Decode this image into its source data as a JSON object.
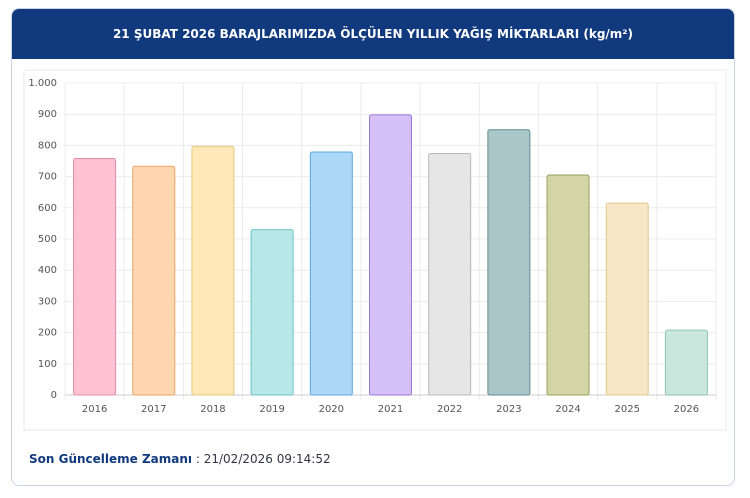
{
  "chart_data": {
    "type": "bar",
    "title": "21 ŞUBAT 2026 BARAJLARIMIZDA ÖLÇÜLEN YILLIK YAĞIŞ MİKTARLARI (kg/m²)",
    "categories": [
      "2016",
      "2017",
      "2018",
      "2019",
      "2020",
      "2021",
      "2022",
      "2023",
      "2024",
      "2025",
      "2026"
    ],
    "values": [
      758,
      733,
      797,
      530,
      779,
      898,
      774,
      850,
      705,
      615,
      208
    ],
    "colors": [
      "#ffc2d3",
      "#ffd6b0",
      "#ffe8b8",
      "#b8e7e7",
      "#acd7f7",
      "#d5c0f8",
      "#e6e6e6",
      "#aac6c9",
      "#d3d5a6",
      "#f8e7c6",
      "#cae7dd"
    ],
    "border_colors": [
      "#e68aa6",
      "#e8a46a",
      "#e8c77a",
      "#6cc2c2",
      "#5aa8e0",
      "#9a78d8",
      "#b8b8b8",
      "#5f8d92",
      "#9c9f5c",
      "#e2c78e",
      "#8cc6b0"
    ],
    "ylim": [
      0,
      1000
    ],
    "yticks": [
      0,
      100,
      200,
      300,
      400,
      500,
      600,
      700,
      800,
      900,
      {
        "value": 1000,
        "label": "1.000"
      }
    ],
    "grid": true,
    "footer_label": "Son Güncelleme Zamanı",
    "footer_value": ": 21/02/2026 09:14:52"
  }
}
